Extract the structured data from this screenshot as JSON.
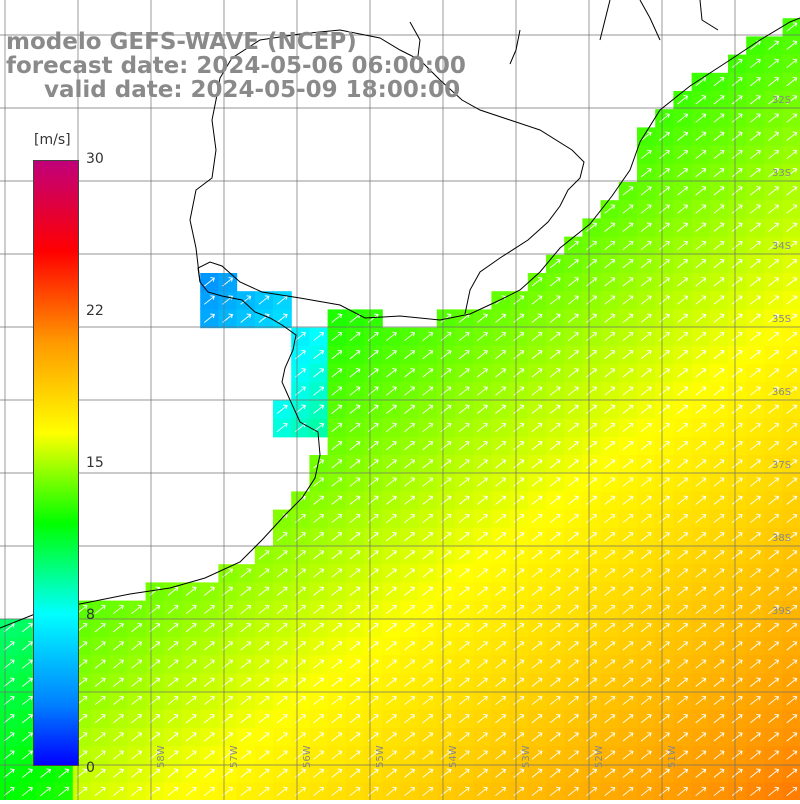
{
  "title": {
    "line1": "modelo GEFS-WAVE (NCEP)",
    "line2": "forecast date: 2024-05-06 06:00:00",
    "line3": "valid date: 2024-05-09 18:00:00"
  },
  "colorbar": {
    "unit": "[m/s]",
    "ticks": [
      "30",
      "22",
      "15",
      "8",
      "0"
    ]
  },
  "lat_labels": [
    "32S",
    "33S",
    "34S",
    "35S",
    "36S",
    "37S",
    "38S",
    "39S"
  ],
  "lon_labels": [
    "58W",
    "57W",
    "56W",
    "55W",
    "54W",
    "53W",
    "52W",
    "51W"
  ],
  "colors": {
    "land": "#ffffff",
    "coast": "#000000",
    "grid": "#707070",
    "arrow": "#ffffff"
  },
  "wind_speed_range_ms": [
    0,
    30
  ],
  "wind_direction": "toward northeast"
}
